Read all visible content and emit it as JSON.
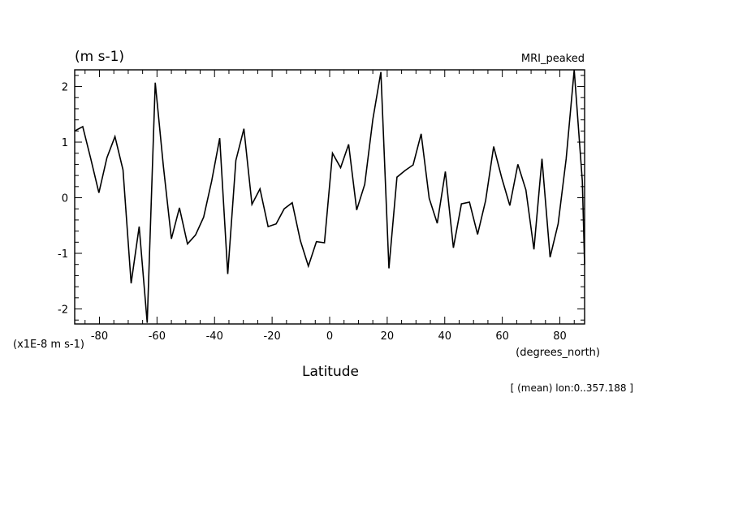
{
  "chart_data": {
    "type": "line",
    "title": "MRI_peaked",
    "units_label": "(m s-1)",
    "scale_label": "(x1E-8 m s-1)",
    "xlabel": "Latitude",
    "xunits_label": "(degrees_north)",
    "footnote": "[ (mean) lon:0..357.188 ]",
    "xlim": [
      -88.6,
      88.6
    ],
    "ylim": [
      -2.27,
      2.3
    ],
    "xticks": [
      -80,
      -60,
      -40,
      -20,
      0,
      20,
      40,
      60,
      80
    ],
    "xtick_labels": [
      "-80",
      "-60",
      "-40",
      "-20",
      "0",
      "20",
      "40",
      "60",
      "80"
    ],
    "yticks": [
      -2,
      -1,
      0,
      1,
      2
    ],
    "ytick_labels": [
      "-2",
      "-1",
      "0",
      "1",
      "2"
    ],
    "series": [
      {
        "name": "MRI_peaked",
        "color": "#000000",
        "x": [
          -88.6,
          -85.8,
          -83.0,
          -80.2,
          -77.4,
          -74.6,
          -71.8,
          -69.0,
          -66.2,
          -63.4,
          -60.6,
          -57.8,
          -55.0,
          -52.2,
          -49.4,
          -46.6,
          -43.8,
          -41.0,
          -38.2,
          -35.4,
          -32.6,
          -29.8,
          -27.0,
          -24.2,
          -21.4,
          -18.6,
          -15.8,
          -13.0,
          -10.2,
          -7.4,
          -4.6,
          -1.8,
          1.0,
          3.8,
          6.6,
          9.4,
          12.2,
          15.0,
          17.8,
          20.6,
          23.4,
          26.2,
          29.0,
          31.8,
          34.6,
          37.4,
          40.2,
          43.0,
          45.8,
          48.6,
          51.4,
          54.2,
          57.0,
          59.8,
          62.6,
          65.4,
          68.2,
          71.0,
          73.8,
          76.6,
          79.4,
          82.2,
          85.0,
          87.8,
          88.6
        ],
        "values": [
          1.2,
          1.28,
          0.7,
          0.09,
          0.72,
          1.1,
          0.5,
          -1.54,
          -0.52,
          -2.25,
          2.07,
          0.57,
          -0.74,
          -0.18,
          -0.83,
          -0.67,
          -0.35,
          0.3,
          1.07,
          -1.37,
          0.67,
          1.24,
          -0.12,
          0.16,
          -0.52,
          -0.47,
          -0.2,
          -0.09,
          -0.77,
          -1.23,
          -0.79,
          -0.81,
          0.8,
          0.54,
          0.96,
          -0.22,
          0.24,
          1.41,
          2.26,
          -1.27,
          0.37,
          0.49,
          0.59,
          1.15,
          -0.01,
          -0.46,
          0.47,
          -0.9,
          -0.11,
          -0.08,
          -0.66,
          -0.05,
          0.92,
          0.36,
          -0.14,
          0.6,
          0.14,
          -0.93,
          0.7,
          -1.07,
          -0.47,
          0.7,
          2.3,
          0.3,
          -1.2
        ]
      }
    ]
  }
}
